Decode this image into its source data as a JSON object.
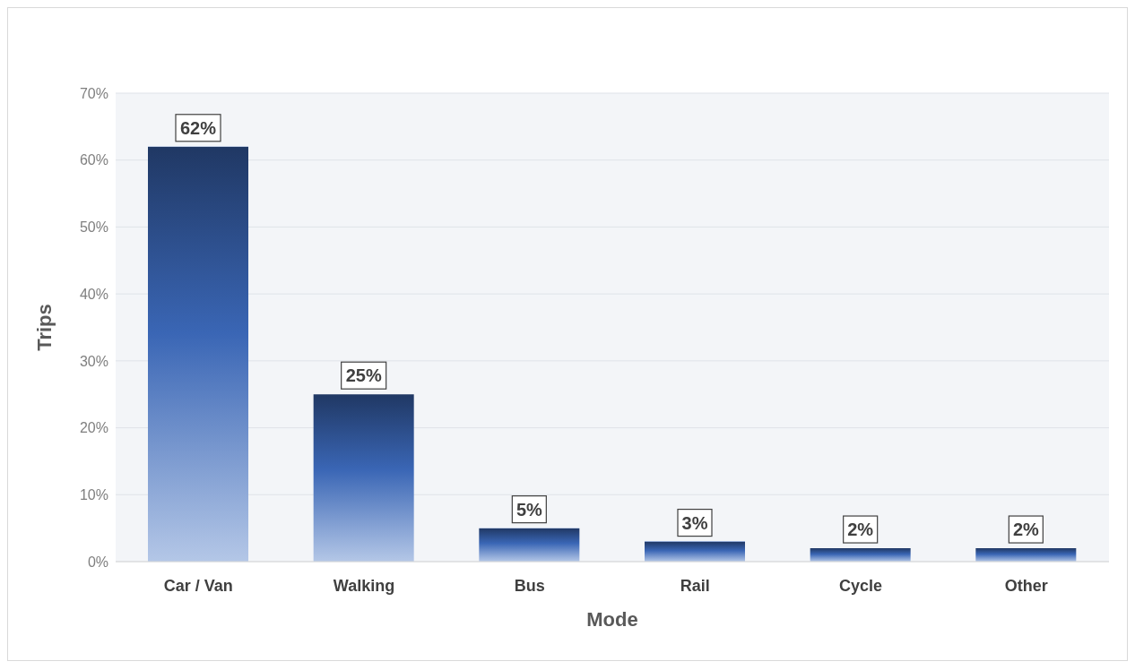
{
  "chart_data": {
    "type": "bar",
    "xlabel": "Mode",
    "ylabel": "Trips",
    "categories": [
      "Car / Van",
      "Walking",
      "Bus",
      "Rail",
      "Cycle",
      "Other"
    ],
    "values": [
      62,
      25,
      5,
      3,
      2,
      2
    ],
    "value_labels": [
      "62%",
      "25%",
      "5%",
      "3%",
      "2%",
      "2%"
    ],
    "color": "#3a66b5",
    "ylim": [
      0,
      70
    ],
    "yticks": [
      {
        "value": 0,
        "label": "0%"
      },
      {
        "value": 10,
        "label": "10%"
      },
      {
        "value": 20,
        "label": "20%"
      },
      {
        "value": 30,
        "label": "30%"
      },
      {
        "value": 40,
        "label": "40%"
      },
      {
        "value": 50,
        "label": "50%"
      },
      {
        "value": 60,
        "label": "60%"
      },
      {
        "value": 70,
        "label": "70%"
      }
    ],
    "grid": "y",
    "legend": false
  }
}
